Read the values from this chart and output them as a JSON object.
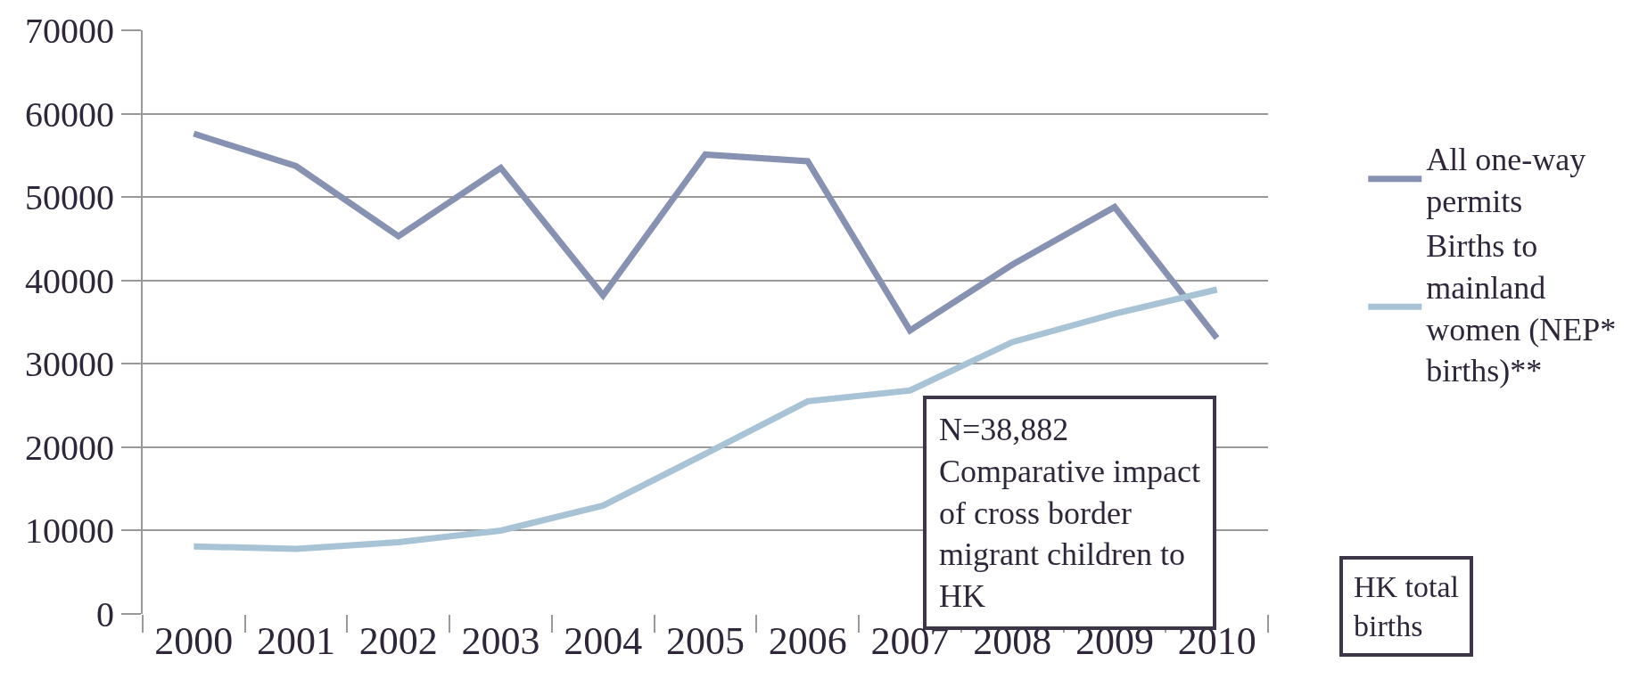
{
  "chart_data": {
    "type": "line",
    "categories": [
      "2000",
      "2001",
      "2002",
      "2003",
      "2004",
      "2005",
      "2006",
      "2007",
      "2008",
      "2009",
      "2010"
    ],
    "series": [
      {
        "name": "All one-way permits",
        "color": "#8792b3",
        "values": [
          57600,
          53700,
          45300,
          53500,
          38200,
          55100,
          54300,
          34000,
          41900,
          48800,
          33100
        ]
      },
      {
        "name": "Births to mainland women (NEP* births)**",
        "color": "#a9c3d6",
        "values": [
          8100,
          7800,
          8600,
          10000,
          13000,
          19200,
          25500,
          26800,
          32600,
          36000,
          38900
        ]
      }
    ],
    "ylim": [
      0,
      70000
    ],
    "yticks": [
      0,
      10000,
      20000,
      30000,
      40000,
      50000,
      60000,
      70000
    ],
    "grid": "y",
    "legend": "right",
    "marker": "none",
    "line_style": "solid",
    "annotations": [
      "N=38,882\nComparative impact of cross border migrant children to HK",
      "HK total births"
    ]
  }
}
